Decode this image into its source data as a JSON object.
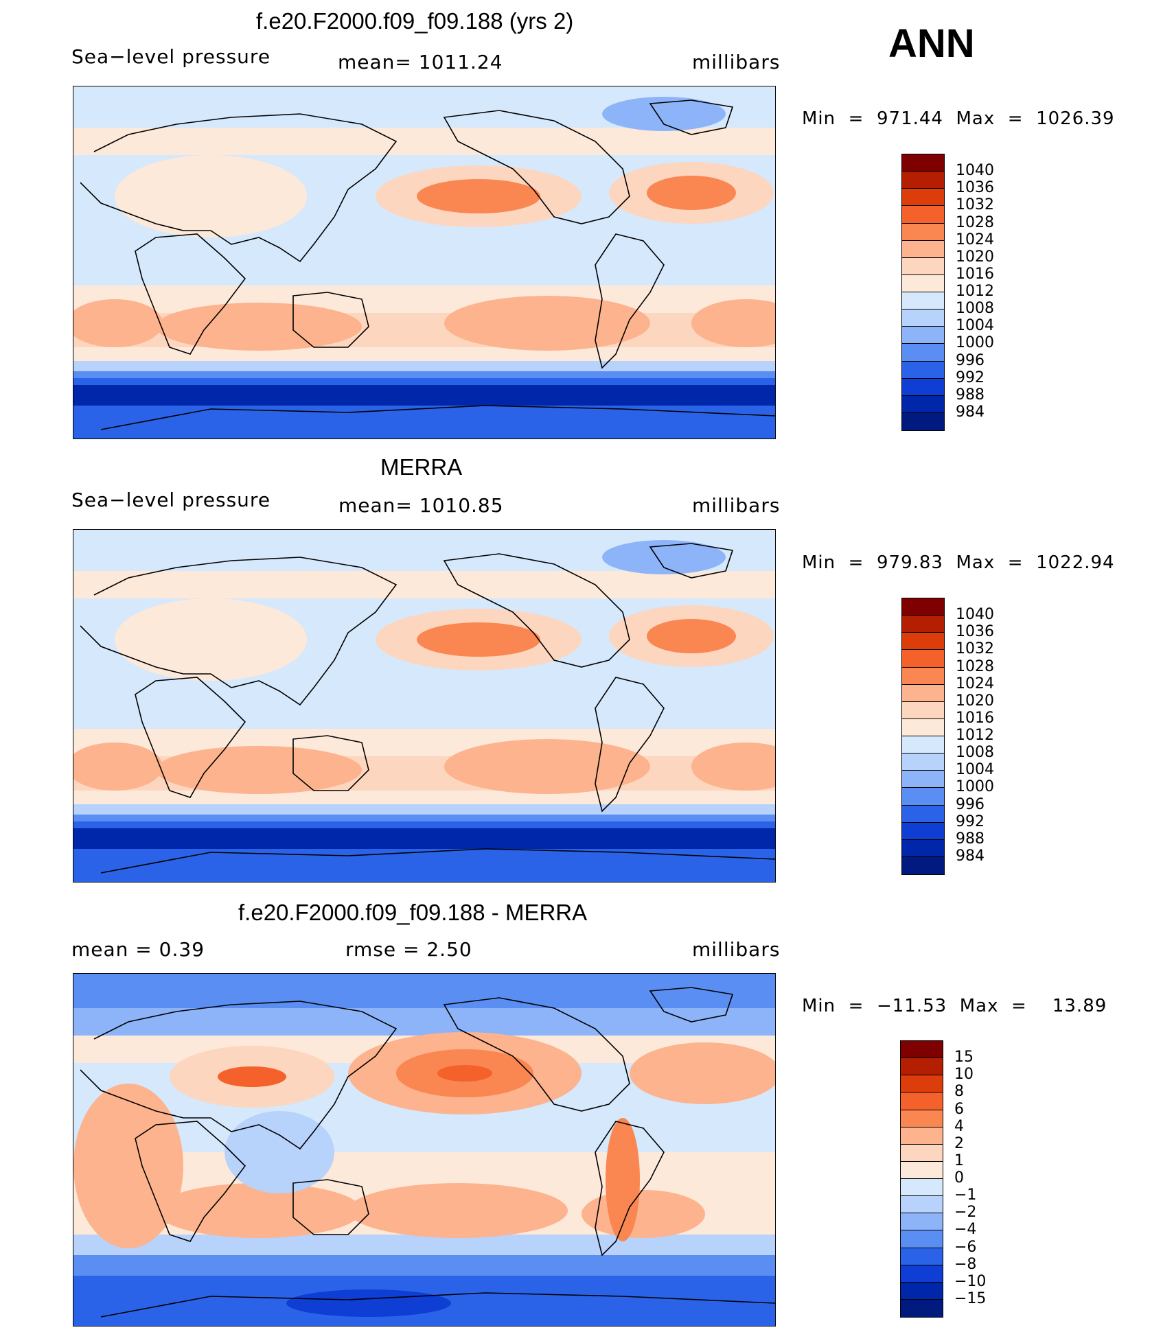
{
  "season": "ANN",
  "panels": [
    {
      "id": "model",
      "title": "f.e20.F2000.f09_f09.188 (yrs 2)",
      "left_label": "Sea−level pressure",
      "center_label": "mean=  1011.24",
      "right_label": "millibars",
      "minmax": "Min  =  971.44  Max  =  1026.39",
      "levels": [
        "1040",
        "1036",
        "1032",
        "1028",
        "1024",
        "1020",
        "1016",
        "1012",
        "1008",
        "1004",
        "1000",
        "996",
        "992",
        "988",
        "984"
      ],
      "colors": [
        "#7f0000",
        "#b31f00",
        "#dd3d0a",
        "#f5612a",
        "#fa8651",
        "#fcb38e",
        "#fdd6bf",
        "#fde9da",
        "#d6e8fb",
        "#b7d2fb",
        "#8db4f8",
        "#5a8ef2",
        "#2b63e8",
        "#0e3ed4",
        "#0027aa",
        "#001a80"
      ]
    },
    {
      "id": "obs",
      "title": "MERRA",
      "left_label": "Sea−level pressure",
      "center_label": "mean=  1010.85",
      "right_label": "millibars",
      "minmax": "Min  =  979.83  Max  =  1022.94",
      "levels": [
        "1040",
        "1036",
        "1032",
        "1028",
        "1024",
        "1020",
        "1016",
        "1012",
        "1008",
        "1004",
        "1000",
        "996",
        "992",
        "988",
        "984"
      ],
      "colors": [
        "#7f0000",
        "#b31f00",
        "#dd3d0a",
        "#f5612a",
        "#fa8651",
        "#fcb38e",
        "#fdd6bf",
        "#fde9da",
        "#d6e8fb",
        "#b7d2fb",
        "#8db4f8",
        "#5a8ef2",
        "#2b63e8",
        "#0e3ed4",
        "#0027aa",
        "#001a80"
      ]
    },
    {
      "id": "diff",
      "title": "f.e20.F2000.f09_f09.188 - MERRA",
      "left_label": "mean  =     0.39",
      "center_label": "rmse  =     2.50",
      "right_label": "millibars",
      "minmax": "Min  =  −11.53  Max  =    13.89",
      "levels": [
        "15",
        "10",
        "8",
        "6",
        "4",
        "2",
        "1",
        "0",
        "−1",
        "−2",
        "−4",
        "−6",
        "−8",
        "−10",
        "−15"
      ],
      "colors": [
        "#7f0000",
        "#b31f00",
        "#dd3d0a",
        "#f5612a",
        "#fa8651",
        "#fcb38e",
        "#fdd6bf",
        "#fde9da",
        "#d6e8fb",
        "#b7d2fb",
        "#8db4f8",
        "#5a8ef2",
        "#2b63e8",
        "#0e3ed4",
        "#0027aa",
        "#001a80"
      ]
    }
  ]
}
